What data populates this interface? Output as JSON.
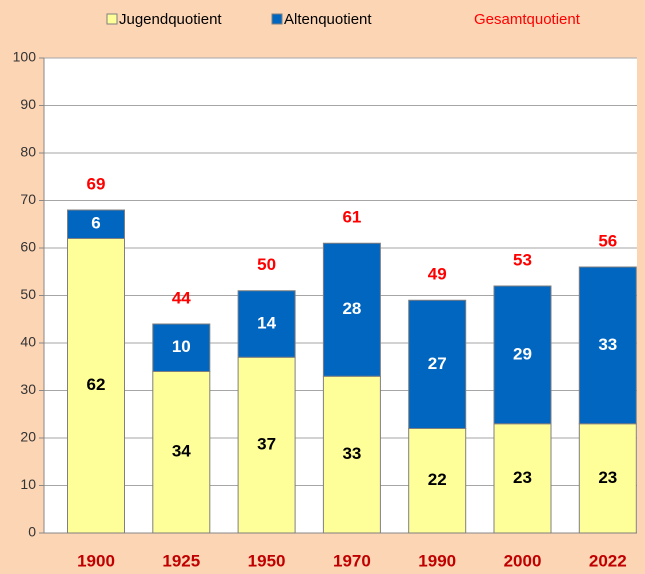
{
  "chart_data": {
    "type": "stacked-bar",
    "categories": [
      "1900",
      "1925",
      "1950",
      "1970",
      "1990",
      "2000",
      "2022"
    ],
    "series": [
      {
        "name": "Jugendquotient",
        "color": "#ffff99",
        "values": [
          62,
          34,
          37,
          33,
          22,
          23,
          23
        ]
      },
      {
        "name": "Altenquotient",
        "color": "#0066c0",
        "values": [
          6,
          10,
          14,
          28,
          27,
          29,
          33
        ]
      }
    ],
    "totals": {
      "name": "Gesamtquotient",
      "color": "#ff0000",
      "values": [
        69,
        44,
        50,
        61,
        49,
        53,
        56
      ]
    },
    "ylim": [
      0,
      100
    ],
    "yticks": [
      0,
      10,
      20,
      30,
      40,
      50,
      60,
      70,
      80,
      90,
      100
    ],
    "grid": true
  }
}
